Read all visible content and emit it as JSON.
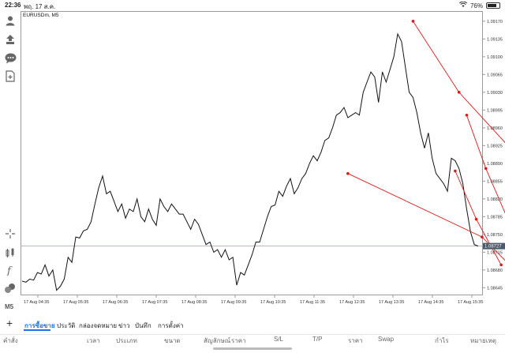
{
  "status": {
    "time": "22:36",
    "date": "พฤ. 17 ส.ค.",
    "battery": "76%",
    "battery_level": 0.76
  },
  "chart": {
    "symbol_label": "EURUSDm, M5",
    "current_price": "1.08727",
    "y_ticks": [
      "1.09170",
      "1.09135",
      "1.09100",
      "1.09065",
      "1.09030",
      "1.08995",
      "1.08960",
      "1.08925",
      "1.08890",
      "1.08855",
      "1.08820",
      "1.08785",
      "1.08750",
      "1.08715",
      "1.08680",
      "1.08645"
    ],
    "x_ticks": [
      "17 Aug 04:35",
      "17 Aug 05:35",
      "17 Aug 06:35",
      "17 Aug 07:35",
      "17 Aug 08:35",
      "17 Aug 09:35",
      "17 Aug 10:35",
      "17 Aug 11:35",
      "17 Aug 12:35",
      "17 Aug 13:35",
      "17 Aug 14:35",
      "17 Aug 15:35"
    ],
    "colors": {
      "price_line": "#111111",
      "trendline": "#d81b1b",
      "current_price_bg": "#4a5a6a"
    }
  },
  "chart_data": {
    "type": "line",
    "title": "EURUSDm, M5",
    "ylim": [
      1.0863,
      1.0919
    ],
    "x_labels": [
      "17 Aug 04:35",
      "17 Aug 05:35",
      "17 Aug 06:35",
      "17 Aug 07:35",
      "17 Aug 08:35",
      "17 Aug 09:35",
      "17 Aug 10:35",
      "17 Aug 11:35",
      "17 Aug 12:35",
      "17 Aug 13:35",
      "17 Aug 14:35",
      "17 Aug 15:35"
    ],
    "series": [
      {
        "values": [
          1.08658,
          1.08656,
          1.08662,
          1.0866,
          1.08675,
          1.08672,
          1.0869,
          1.08668,
          1.0868,
          1.0864,
          1.08648,
          1.08662,
          1.08705,
          1.08695,
          1.08745,
          1.08743,
          1.08757,
          1.0876,
          1.08775,
          1.0881,
          1.08842,
          1.08865,
          1.0883,
          1.08835,
          1.08815,
          1.08795,
          1.0881,
          1.08782,
          1.088,
          1.08795,
          1.0882,
          1.08785,
          1.08775,
          1.088,
          1.0878,
          1.08768,
          1.0882,
          1.08805,
          1.08795,
          1.0881,
          1.088,
          1.0879,
          1.0879,
          1.08775,
          1.0876,
          1.0878,
          1.0877,
          1.0875,
          1.0873,
          1.08735,
          1.08715,
          1.0872,
          1.08705,
          1.0872,
          1.087,
          1.08705,
          1.0865,
          1.08675,
          1.0867,
          1.0869,
          1.0871,
          1.08735,
          1.08735,
          1.0876,
          1.08785,
          1.08805,
          1.08808,
          1.08835,
          1.08825,
          1.08845,
          1.0886,
          1.0883,
          1.08842,
          1.0886,
          1.0887,
          1.0889,
          1.08905,
          1.08895,
          1.08912,
          1.08935,
          1.0894,
          1.0896,
          1.08985,
          1.0899,
          1.09,
          1.0898,
          1.08985,
          1.0899,
          1.08985,
          1.0903,
          1.0905,
          1.0907,
          1.0906,
          1.0901,
          1.0907,
          1.0905,
          1.09075,
          1.091,
          1.09145,
          1.0913,
          1.0908,
          1.0903,
          1.0902,
          1.0899,
          1.0895,
          1.0892,
          1.0895,
          1.089,
          1.0887,
          1.0886,
          1.0885,
          1.08835,
          1.089,
          1.08895,
          1.0888,
          1.0885,
          1.088,
          1.08755,
          1.0873,
          1.08727
        ]
      }
    ],
    "trendlines": [
      {
        "points": [
          [
            85.0,
            1.0887
          ],
          [
            120.0,
            1.08745
          ],
          [
            135.0,
            1.0863
          ]
        ]
      },
      {
        "points": [
          [
            102.0,
            1.0917
          ],
          [
            114.0,
            1.0903
          ],
          [
            131.0,
            1.0889
          ]
        ]
      },
      {
        "points": [
          [
            116.0,
            1.08985
          ],
          [
            121.0,
            1.0888
          ],
          [
            127.0,
            1.08775
          ]
        ]
      },
      {
        "points": [
          [
            113.0,
            1.08875
          ],
          [
            118.5,
            1.0878
          ],
          [
            125.0,
            1.0869
          ]
        ]
      }
    ]
  },
  "sidebar": {
    "timeframe": "M5"
  },
  "tabs": {
    "items": [
      "การซื้อขาย",
      "ประวัติ",
      "กล่องจดหมาย",
      "ข่าว",
      "บันทึก",
      "การตั้งค่า"
    ]
  },
  "columns": {
    "items": [
      "คำสั่ง",
      "เวลา",
      "ประเภท",
      "ขนาด",
      "สัญลักษณ์",
      "ราคา",
      "S/L",
      "T/P",
      "ราคา",
      "Swap",
      "กำไร",
      "หมายเหตุ"
    ]
  }
}
